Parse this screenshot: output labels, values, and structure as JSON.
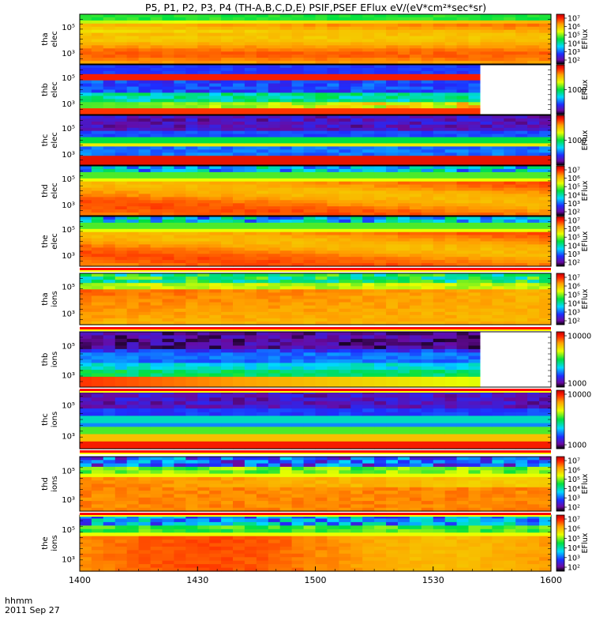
{
  "chart_data": {
    "type": "heatmap",
    "title": "P5, P1, P2, P3, P4  (TH-A,B,C,D,E) PSIF,PSEF EFlux eV/(eV*cm²*sec*sr)",
    "time_axis": {
      "label_line1": "hhmm",
      "label_line2": "2011 Sep 27",
      "ticks": [
        "1400",
        "1430",
        "1500",
        "1530",
        "1600"
      ],
      "range_minutes": [
        0,
        120
      ]
    },
    "colorbar_label": "EFlux",
    "panels": [
      {
        "probe": "tha",
        "species": "elec",
        "yticks": [
          "10⁵",
          "10³"
        ],
        "cbar_ticks": [
          "10⁷",
          "10⁶",
          "10⁵",
          "10⁴",
          "10³",
          "10²"
        ],
        "cbar_label": "EFlux",
        "cbar_range": [
          100,
          10000000
        ],
        "pattern": "elec_high"
      },
      {
        "probe": "thb",
        "species": "elec",
        "yticks": [
          "10⁵",
          "10³"
        ],
        "cbar_ticks": [
          "1000"
        ],
        "cbar_label": "EFlux",
        "cbar_range": [
          100,
          10000
        ],
        "pattern": "thb_elec",
        "data_end_minutes": 104
      },
      {
        "probe": "thc",
        "species": "elec",
        "yticks": [
          "10⁵",
          "10³"
        ],
        "cbar_ticks": [
          "1000"
        ],
        "cbar_label": "EFlux",
        "cbar_range": [
          100,
          10000
        ],
        "pattern": "thc_elec"
      },
      {
        "probe": "thd",
        "species": "elec",
        "yticks": [
          "10⁵",
          "10³"
        ],
        "cbar_ticks": [
          "10⁷",
          "10⁶",
          "10⁵",
          "10⁴",
          "10³",
          "10²"
        ],
        "cbar_label": "EFlux",
        "cbar_range": [
          100,
          10000000
        ],
        "pattern": "elec_mid"
      },
      {
        "probe": "the",
        "species": "elec",
        "yticks": [
          "10⁵",
          "10³"
        ],
        "cbar_ticks": [
          "10⁷",
          "10⁶",
          "10⁵",
          "10⁴",
          "10³",
          "10²"
        ],
        "cbar_label": "EFlux",
        "cbar_range": [
          100,
          10000000
        ],
        "pattern": "elec_mid"
      },
      {
        "probe": "tha",
        "species": "ions",
        "yticks": [
          "10⁵",
          "10³"
        ],
        "cbar_ticks": [
          "10⁷",
          "10⁶",
          "10⁵",
          "10⁴",
          "10³",
          "10²"
        ],
        "cbar_label": "EFlux",
        "cbar_range": [
          100,
          10000000
        ],
        "pattern": "ions_a"
      },
      {
        "probe": "thb",
        "species": "ions",
        "yticks": [
          "10⁵",
          "10³"
        ],
        "cbar_ticks": [
          "10000",
          "1000"
        ],
        "cbar_label": "",
        "cbar_range": [
          300,
          20000
        ],
        "pattern": "thb_ions",
        "data_end_minutes": 104
      },
      {
        "probe": "thc",
        "species": "ions",
        "yticks": [
          "10⁵",
          "10³"
        ],
        "cbar_ticks": [
          "10000",
          "1000"
        ],
        "cbar_label": "",
        "cbar_range": [
          300,
          10000
        ],
        "pattern": "thc_ions"
      },
      {
        "probe": "thd",
        "species": "ions",
        "yticks": [
          "10⁵",
          "10³"
        ],
        "cbar_ticks": [
          "10⁷",
          "10⁶",
          "10⁵",
          "10⁴",
          "10³",
          "10²"
        ],
        "cbar_label": "EFlux",
        "cbar_range": [
          100,
          10000000
        ],
        "pattern": "ions_d"
      },
      {
        "probe": "the",
        "species": "ions",
        "yticks": [
          "10⁵",
          "10³"
        ],
        "cbar_ticks": [
          "10⁷",
          "10⁶",
          "10⁵",
          "10⁴",
          "10³",
          "10²"
        ],
        "cbar_label": "EFlux",
        "cbar_range": [
          100,
          10000000
        ],
        "pattern": "ions_e"
      }
    ]
  }
}
